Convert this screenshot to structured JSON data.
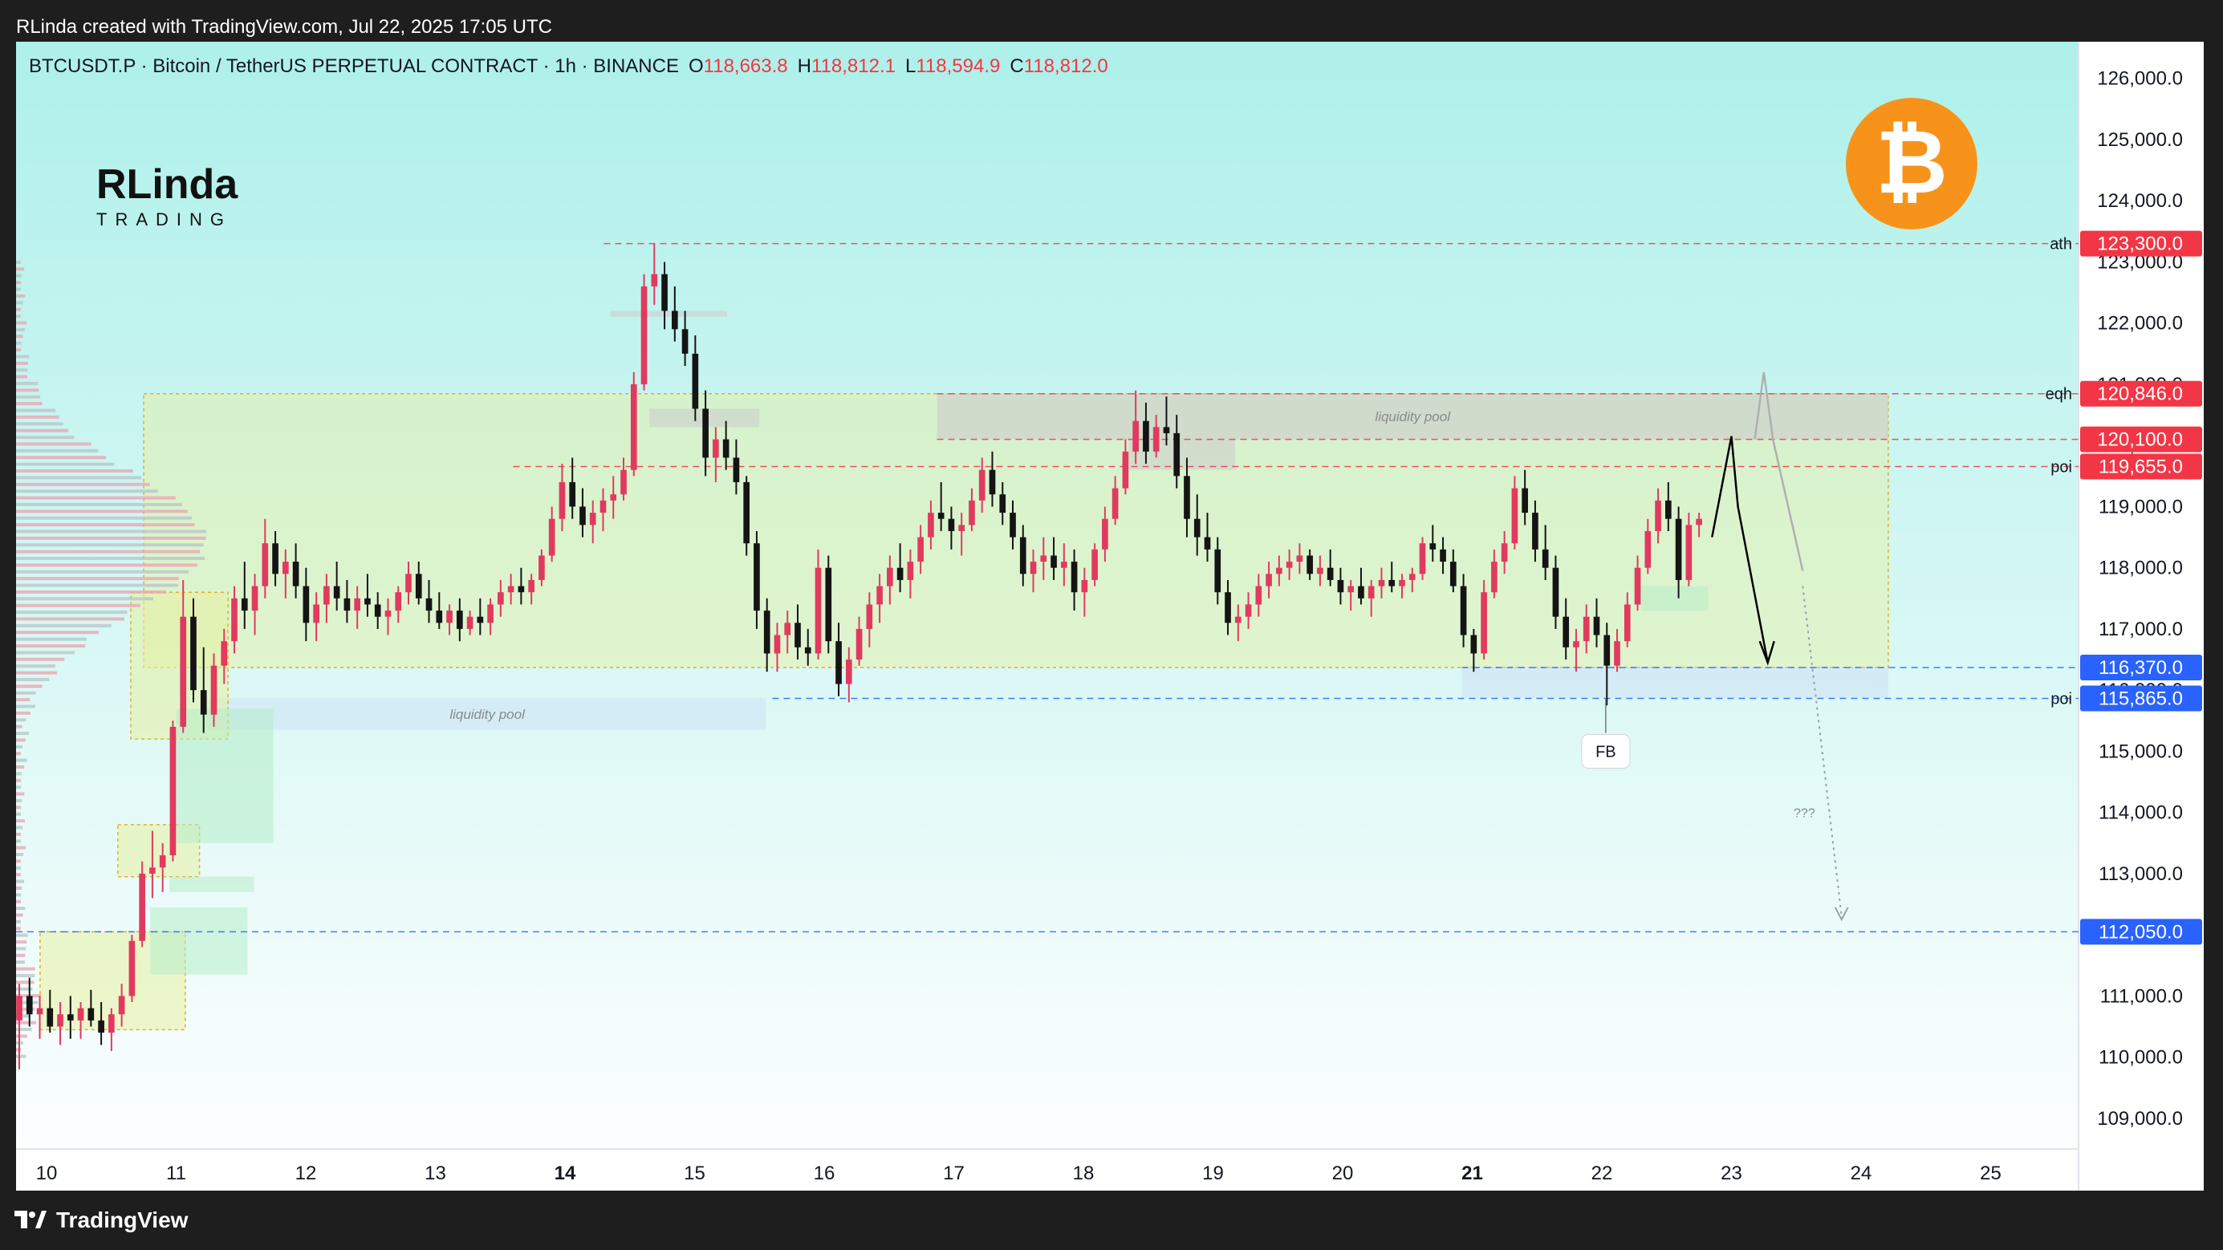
{
  "header_text": "RLinda created with TradingView.com, Jul 22, 2025 17:05 UTC",
  "footer_brand": "TradingView",
  "symbol_line": {
    "symbol": "BTCUSDT.P · Bitcoin / TetherUS PERPETUAL CONTRACT · 1h · BINANCE",
    "o_label": "O",
    "o_value": "118,663.8",
    "h_label": "H",
    "h_value": "118,812.1",
    "l_label": "L",
    "l_value": "118,594.9",
    "c_label": "C",
    "c_value": "118,812.0"
  },
  "logo": {
    "main": "RLinda",
    "sub": "TRADING"
  },
  "badge_icon": "bitcoin-icon",
  "colors": {
    "bg_top": "#aef0ea",
    "bg_bottom": "#ffffff",
    "up": "#e13a5e",
    "down": "#141414",
    "red_label": "#f23645",
    "blue_label": "#2962ff",
    "zone_yellow": "#e6f0a0",
    "zone_green": "#b7ecc9",
    "zone_blue": "#cfe3f5",
    "zone_grey": "#cccccc",
    "btc_orange": "#f7931a"
  },
  "chart_data": {
    "type": "candlestick",
    "x_axis_labels": [
      "10",
      "11",
      "12",
      "13",
      "14",
      "15",
      "16",
      "17",
      "18",
      "19",
      "20",
      "21",
      "22",
      "23",
      "24",
      "25"
    ],
    "bold_labels": [
      "14",
      "21"
    ],
    "y_axis_ticks": [
      "109,000.0",
      "110,000.0",
      "111,000.0",
      "112,000.0",
      "113,000.0",
      "114,000.0",
      "115,000.0",
      "116,000.0",
      "117,000.0",
      "118,000.0",
      "119,000.0",
      "120,000.0",
      "121,000.0",
      "122,000.0",
      "123,000.0",
      "124,000.0",
      "125,000.0",
      "126,000.0"
    ],
    "ylim": [
      108500,
      126600
    ],
    "price_lines": [
      {
        "price": 123300,
        "label": "123,300.0",
        "tag": "ath",
        "color": "red"
      },
      {
        "price": 120846,
        "label": "120,846.0",
        "tag": "eqh",
        "color": "red"
      },
      {
        "price": 120100,
        "label": "120,100.0",
        "tag": "",
        "color": "red"
      },
      {
        "price": 119655,
        "label": "119,655.0",
        "tag": "poi",
        "color": "red"
      },
      {
        "price": 116370,
        "label": "116,370.0",
        "tag": "",
        "color": "blue"
      },
      {
        "price": 115865,
        "label": "115,865.0",
        "tag": "poi",
        "color": "blue"
      },
      {
        "price": 112050,
        "label": "112,050.0",
        "tag": "",
        "color": "blue"
      }
    ],
    "zones": [
      {
        "name": "range-zone",
        "x0": "10.75",
        "x1": "24.21",
        "y0": 116370,
        "y1": 120846,
        "color": "yellow",
        "label": ""
      },
      {
        "name": "upper-liquidity-pool",
        "x0": "16.87",
        "x1": "24.21",
        "y0": 120100,
        "y1": 120846,
        "color": "grey",
        "label": "liquidity pool"
      },
      {
        "name": "lower-liquidity-pool",
        "x0": "11.25",
        "x1": "15.55",
        "y0": 115350,
        "y1": 115870,
        "color": "blue",
        "label": "liquidity pool"
      },
      {
        "name": "range-bottom-zone",
        "x0": "20.92",
        "x1": "24.21",
        "y0": 115870,
        "y1": 116370,
        "color": "blue",
        "label": ""
      }
    ],
    "annotations": [
      "FB",
      "???"
    ],
    "candles": [
      [
        110600,
        111200,
        109800,
        111000
      ],
      [
        111000,
        111300,
        110500,
        110700
      ],
      [
        110700,
        111000,
        110300,
        110800
      ],
      [
        110800,
        111100,
        110400,
        110500
      ],
      [
        110500,
        110900,
        110200,
        110700
      ],
      [
        110700,
        111000,
        110300,
        110600
      ],
      [
        110600,
        110900,
        110300,
        110800
      ],
      [
        110800,
        111100,
        110500,
        110600
      ],
      [
        110600,
        110900,
        110200,
        110400
      ],
      [
        110400,
        110800,
        110100,
        110700
      ],
      [
        110700,
        111200,
        110500,
        111000
      ],
      [
        111000,
        112000,
        110900,
        111900
      ],
      [
        111900,
        113200,
        111800,
        113000
      ],
      [
        113000,
        113700,
        112600,
        113100
      ],
      [
        113100,
        113500,
        112700,
        113300
      ],
      [
        113300,
        115500,
        113200,
        115400
      ],
      [
        115400,
        117800,
        115300,
        117200
      ],
      [
        117200,
        117500,
        115800,
        116000
      ],
      [
        116000,
        116700,
        115300,
        115600
      ],
      [
        115600,
        116600,
        115400,
        116400
      ],
      [
        116400,
        117000,
        116100,
        116800
      ],
      [
        116800,
        117700,
        116600,
        117500
      ],
      [
        117500,
        118100,
        117000,
        117300
      ],
      [
        117300,
        117900,
        116900,
        117700
      ],
      [
        117700,
        118800,
        117500,
        118400
      ],
      [
        118400,
        118600,
        117700,
        117900
      ],
      [
        117900,
        118300,
        117500,
        118100
      ],
      [
        118100,
        118400,
        117500,
        117700
      ],
      [
        117700,
        118000,
        116800,
        117100
      ],
      [
        117100,
        117600,
        116800,
        117400
      ],
      [
        117400,
        117900,
        117100,
        117700
      ],
      [
        117700,
        118100,
        117300,
        117500
      ],
      [
        117500,
        117800,
        117100,
        117300
      ],
      [
        117300,
        117700,
        117000,
        117500
      ],
      [
        117500,
        117900,
        117200,
        117400
      ],
      [
        117400,
        117600,
        117000,
        117200
      ],
      [
        117200,
        117500,
        116900,
        117300
      ],
      [
        117300,
        117700,
        117100,
        117600
      ],
      [
        117600,
        118100,
        117400,
        117900
      ],
      [
        117900,
        118100,
        117400,
        117500
      ],
      [
        117500,
        117800,
        117100,
        117300
      ],
      [
        117300,
        117600,
        117000,
        117100
      ],
      [
        117100,
        117400,
        116900,
        117300
      ],
      [
        117300,
        117500,
        116800,
        117000
      ],
      [
        117000,
        117300,
        116900,
        117200
      ],
      [
        117200,
        117500,
        116900,
        117100
      ],
      [
        117100,
        117500,
        116900,
        117400
      ],
      [
        117400,
        117800,
        117200,
        117600
      ],
      [
        117600,
        117900,
        117400,
        117700
      ],
      [
        117700,
        118000,
        117400,
        117600
      ],
      [
        117600,
        117900,
        117400,
        117800
      ],
      [
        117800,
        118300,
        117700,
        118200
      ],
      [
        118200,
        119000,
        118100,
        118800
      ],
      [
        118800,
        119700,
        118600,
        119400
      ],
      [
        119400,
        119800,
        118800,
        119000
      ],
      [
        119000,
        119300,
        118500,
        118700
      ],
      [
        118700,
        119100,
        118400,
        118900
      ],
      [
        118900,
        119300,
        118600,
        119100
      ],
      [
        119100,
        119500,
        118800,
        119200
      ],
      [
        119200,
        119800,
        119100,
        119600
      ],
      [
        119600,
        121200,
        119500,
        121000
      ],
      [
        121000,
        122800,
        120900,
        122600
      ],
      [
        122600,
        123300,
        122300,
        122800
      ],
      [
        122800,
        123000,
        121900,
        122200
      ],
      [
        122200,
        122600,
        121700,
        121900
      ],
      [
        121900,
        122200,
        121300,
        121500
      ],
      [
        121500,
        121800,
        120400,
        120600
      ],
      [
        120600,
        120900,
        119500,
        119800
      ],
      [
        119800,
        120300,
        119400,
        120100
      ],
      [
        120100,
        120400,
        119600,
        119800
      ],
      [
        119800,
        120100,
        119200,
        119400
      ],
      [
        119400,
        119500,
        118200,
        118400
      ],
      [
        118400,
        118600,
        117000,
        117300
      ],
      [
        117300,
        117500,
        116300,
        116600
      ],
      [
        116600,
        117100,
        116300,
        116900
      ],
      [
        116900,
        117300,
        116600,
        117100
      ],
      [
        117100,
        117400,
        116500,
        116700
      ],
      [
        116700,
        117000,
        116400,
        116600
      ],
      [
        116600,
        118300,
        116500,
        118000
      ],
      [
        118000,
        118200,
        116600,
        116800
      ],
      [
        116800,
        117100,
        115900,
        116100
      ],
      [
        116100,
        116700,
        115800,
        116500
      ],
      [
        116500,
        117200,
        116400,
        117000
      ],
      [
        117000,
        117600,
        116700,
        117400
      ],
      [
        117400,
        117900,
        117100,
        117700
      ],
      [
        117700,
        118200,
        117400,
        118000
      ],
      [
        118000,
        118400,
        117600,
        117800
      ],
      [
        117800,
        118300,
        117500,
        118100
      ],
      [
        118100,
        118700,
        117900,
        118500
      ],
      [
        118500,
        119100,
        118300,
        118900
      ],
      [
        118900,
        119400,
        118600,
        118800
      ],
      [
        118800,
        119000,
        118300,
        118600
      ],
      [
        118600,
        118900,
        118200,
        118700
      ],
      [
        118700,
        119300,
        118600,
        119100
      ],
      [
        119100,
        119800,
        118900,
        119600
      ],
      [
        119600,
        119900,
        119000,
        119200
      ],
      [
        119200,
        119400,
        118700,
        118900
      ],
      [
        118900,
        119100,
        118300,
        118500
      ],
      [
        118500,
        118700,
        117700,
        117900
      ],
      [
        117900,
        118300,
        117600,
        118100
      ],
      [
        118100,
        118500,
        117800,
        118200
      ],
      [
        118200,
        118500,
        117800,
        118000
      ],
      [
        118000,
        118400,
        117700,
        118100
      ],
      [
        118100,
        118300,
        117300,
        117600
      ],
      [
        117600,
        118000,
        117200,
        117800
      ],
      [
        117800,
        118400,
        117700,
        118300
      ],
      [
        118300,
        119000,
        118100,
        118800
      ],
      [
        118800,
        119500,
        118700,
        119300
      ],
      [
        119300,
        120100,
        119200,
        119900
      ],
      [
        119900,
        120900,
        119700,
        120400
      ],
      [
        120400,
        120700,
        119700,
        119900
      ],
      [
        119900,
        120500,
        119800,
        120300
      ],
      [
        120300,
        120800,
        120000,
        120200
      ],
      [
        120200,
        120500,
        119300,
        119500
      ],
      [
        119500,
        119800,
        118500,
        118800
      ],
      [
        118800,
        119200,
        118200,
        118500
      ],
      [
        118500,
        118900,
        118100,
        118300
      ],
      [
        118300,
        118500,
        117400,
        117600
      ],
      [
        117600,
        117800,
        116900,
        117100
      ],
      [
        117100,
        117400,
        116800,
        117200
      ],
      [
        117200,
        117600,
        117000,
        117400
      ],
      [
        117400,
        117900,
        117200,
        117700
      ],
      [
        117700,
        118100,
        117500,
        117900
      ],
      [
        117900,
        118200,
        117700,
        118000
      ],
      [
        118000,
        118300,
        117800,
        118100
      ],
      [
        118100,
        118400,
        117900,
        118200
      ],
      [
        118200,
        118300,
        117800,
        117900
      ],
      [
        117900,
        118200,
        117700,
        118000
      ],
      [
        118000,
        118300,
        117700,
        117800
      ],
      [
        117800,
        118000,
        117400,
        117600
      ],
      [
        117600,
        117800,
        117300,
        117700
      ],
      [
        117700,
        118000,
        117400,
        117500
      ],
      [
        117500,
        117800,
        117200,
        117700
      ],
      [
        117700,
        118000,
        117500,
        117800
      ],
      [
        117800,
        118100,
        117600,
        117700
      ],
      [
        117700,
        117900,
        117500,
        117800
      ],
      [
        117800,
        118000,
        117600,
        117900
      ],
      [
        117900,
        118500,
        117800,
        118400
      ],
      [
        118400,
        118700,
        118100,
        118300
      ],
      [
        118300,
        118500,
        117900,
        118100
      ],
      [
        118100,
        118300,
        117600,
        117700
      ],
      [
        117700,
        117900,
        116700,
        116900
      ],
      [
        116900,
        117000,
        116300,
        116600
      ],
      [
        116600,
        117800,
        116500,
        117600
      ],
      [
        117600,
        118300,
        117500,
        118100
      ],
      [
        118100,
        118600,
        117900,
        118400
      ],
      [
        118400,
        119500,
        118300,
        119300
      ],
      [
        119300,
        119600,
        118700,
        118900
      ],
      [
        118900,
        119100,
        118100,
        118300
      ],
      [
        118300,
        118700,
        117800,
        118000
      ],
      [
        118000,
        118200,
        117000,
        117200
      ],
      [
        117200,
        117500,
        116500,
        116700
      ],
      [
        116700,
        117000,
        116300,
        116800
      ],
      [
        116800,
        117400,
        116600,
        117200
      ],
      [
        117200,
        117500,
        116700,
        116900
      ],
      [
        116900,
        117100,
        115750,
        116400
      ],
      [
        116400,
        117000,
        116300,
        116800
      ],
      [
        116800,
        117600,
        116700,
        117400
      ],
      [
        117400,
        118200,
        117300,
        118000
      ],
      [
        118000,
        118800,
        117900,
        118600
      ],
      [
        118600,
        119300,
        118400,
        119100
      ],
      [
        119100,
        119400,
        118600,
        118800
      ],
      [
        118800,
        119000,
        117500,
        117800
      ],
      [
        117800,
        118900,
        117700,
        118700
      ],
      [
        118700,
        118900,
        118500,
        118800
      ]
    ]
  }
}
